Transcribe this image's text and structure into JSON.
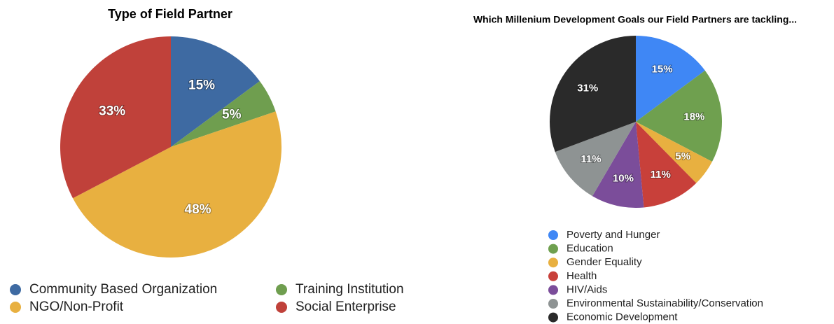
{
  "chart_data": [
    {
      "type": "pie",
      "title": "Type of Field Partner",
      "categories": [
        "Community Based Organization",
        "Training Institution",
        "NGO/Non-Profit",
        "Social Enterprise"
      ],
      "values": [
        15,
        5,
        48,
        33
      ],
      "value_labels": [
        "15%",
        "5%",
        "48%",
        "33%"
      ],
      "colors": [
        "#3e6aa2",
        "#6f9e4f",
        "#e8b040",
        "#c0413a"
      ]
    },
    {
      "type": "pie",
      "title": "Which Millenium Development Goals our Field Partners are tackling...",
      "categories": [
        "Poverty and Hunger",
        "Education",
        "Gender Equality",
        "Health",
        "HIV/Aids",
        "Environmental Sustainability/Conservation",
        "Economic Development"
      ],
      "values": [
        15,
        18,
        5,
        11,
        10,
        11,
        31
      ],
      "value_labels": [
        "15%",
        "18%",
        "5%",
        "11%",
        "10%",
        "11%",
        "31%"
      ],
      "colors": [
        "#3f87f5",
        "#6fa04f",
        "#e8b040",
        "#c8403a",
        "#7b4d9a",
        "#8e9393",
        "#2a2a2a"
      ]
    }
  ]
}
